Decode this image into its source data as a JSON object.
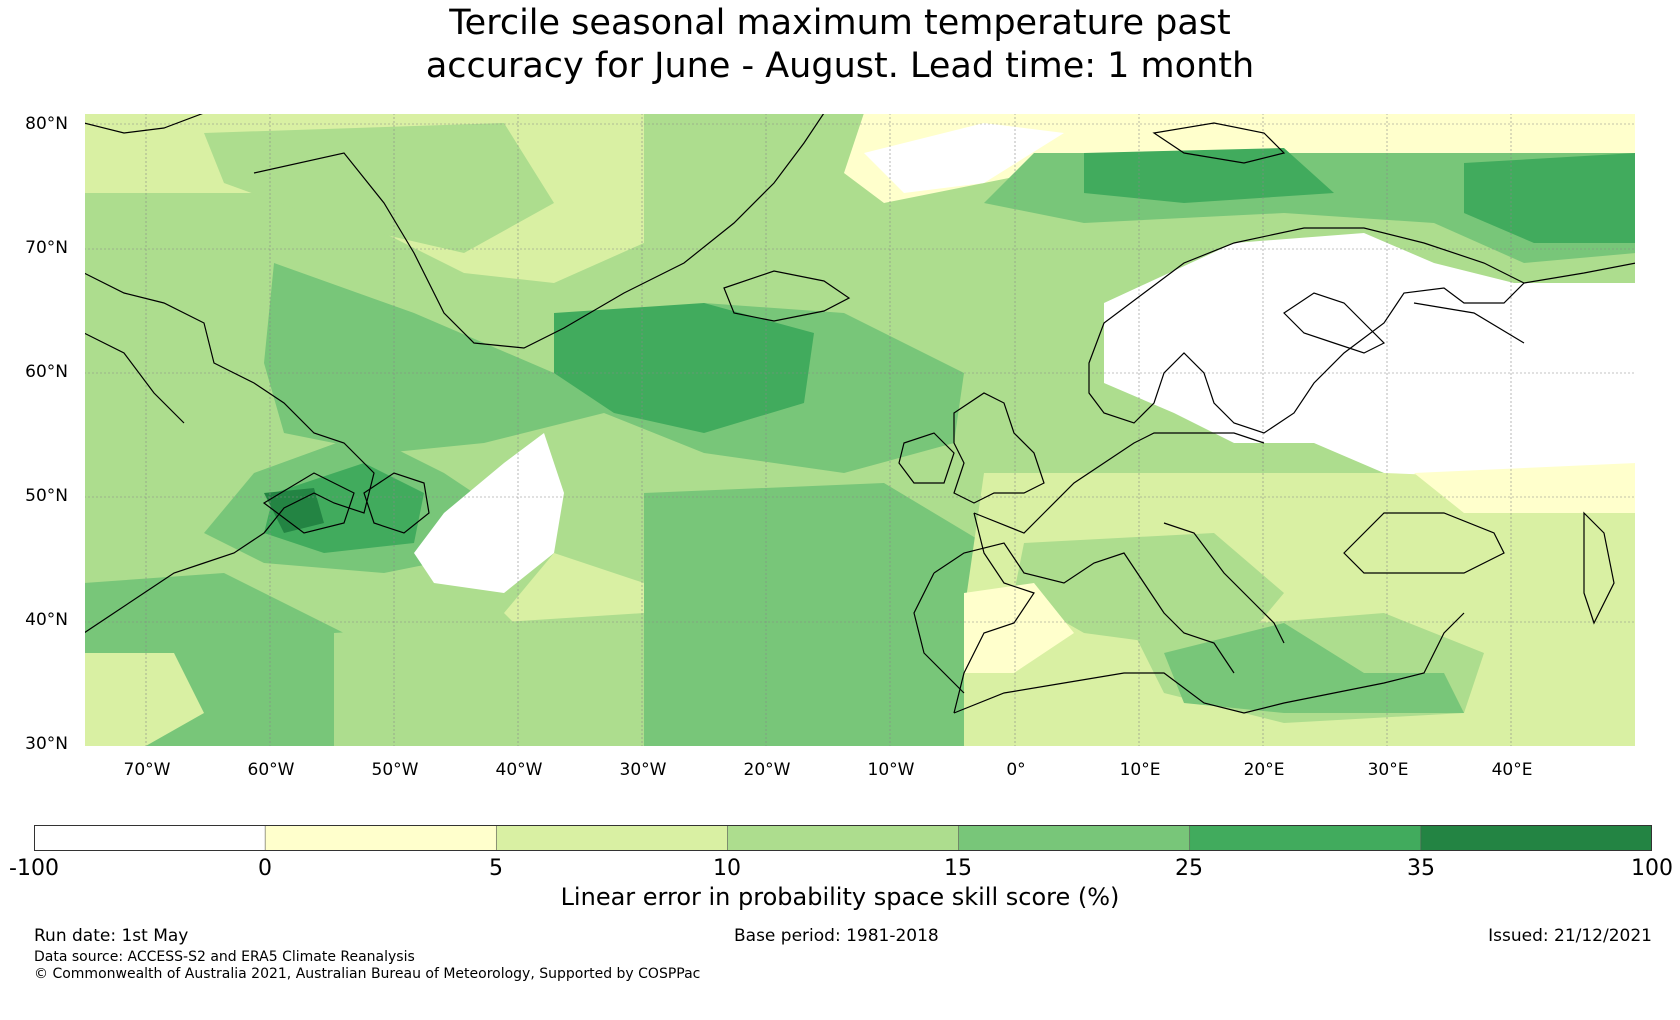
{
  "title": {
    "line1": "Tercile seasonal maximum temperature past",
    "line2": "accuracy for June - August. Lead time: 1 month"
  },
  "map": {
    "lat_labels": [
      "80°N",
      "70°N",
      "60°N",
      "50°N",
      "40°N",
      "30°N"
    ],
    "lon_labels": [
      "70°W",
      "60°W",
      "50°W",
      "40°W",
      "30°W",
      "20°W",
      "10°W",
      "0°",
      "10°E",
      "20°E",
      "30°E",
      "40°E"
    ],
    "extent": {
      "lon_min": -75,
      "lon_max": 50,
      "lat_min": 30,
      "lat_max": 81
    }
  },
  "colorbar": {
    "ticks": [
      "-100",
      "0",
      "5",
      "10",
      "15",
      "25",
      "35",
      "100"
    ],
    "colors": [
      "#ffffff",
      "#ffffcc",
      "#d9f0a3",
      "#addd8e",
      "#78c679",
      "#41ab5d",
      "#238443"
    ],
    "label": "Linear error in probability space skill score (%)"
  },
  "footer": {
    "run_date": "Run date: 1st May",
    "base_period": "Base period: 1981-2018",
    "issued": "Issued: 21/12/2021",
    "data_source": "Data source: ACCESS-S2 and ERA5 Climate Reanalysis",
    "copyright": "© Commonwealth of Australia 2021, Australian Bureau of Meteorology, Supported by COSPPac"
  }
}
